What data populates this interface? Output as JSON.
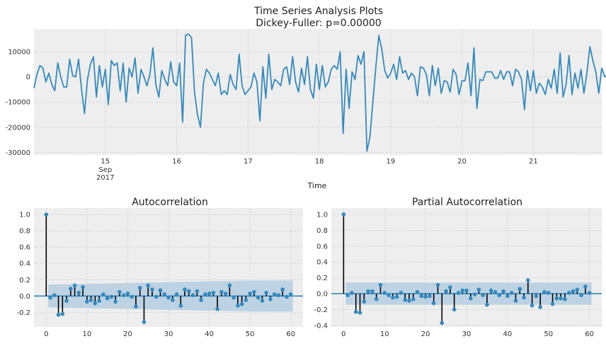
{
  "figure": {
    "title_line1": "Time Series Analysis Plots",
    "title_line2": "Dickey-Fuller: p=0.00000"
  },
  "colors": {
    "line": "#348abd",
    "panel_bg": "#eeeeee",
    "grid": "#c8c8c8",
    "band": "#b4cce0",
    "stem": "#000000",
    "zero_line": "#348abd"
  },
  "chart_data": [
    {
      "type": "line",
      "title": "",
      "xlabel": "Time",
      "ylabel": "",
      "ylim": [
        -31000,
        19000
      ],
      "yticks": [
        -30000,
        -20000,
        -10000,
        0,
        10000
      ],
      "x_range": [
        "2017-09-14 00:00",
        "2017-09-21 23:00"
      ],
      "x_ticks": [
        {
          "time": "2017-09-15 00:00",
          "label": "15",
          "sub": [
            "Sep",
            "2017"
          ]
        },
        {
          "time": "2017-09-16 00:00",
          "label": "16"
        },
        {
          "time": "2017-09-17 00:00",
          "label": "17"
        },
        {
          "time": "2017-09-18 00:00",
          "label": "18"
        },
        {
          "time": "2017-09-19 00:00",
          "label": "19"
        },
        {
          "time": "2017-09-20 00:00",
          "label": "20"
        },
        {
          "time": "2017-09-21 00:00",
          "label": "21"
        }
      ],
      "series": [
        {
          "interval_hours": 1,
          "values": [
            -4500,
            1000,
            4500,
            3500,
            -2000,
            1500,
            -3000,
            -5500,
            5500,
            0,
            -4000,
            -4000,
            7000,
            500,
            0,
            7000,
            -5000,
            -14500,
            -1000,
            5000,
            8000,
            -8000,
            4500,
            -4000,
            3000,
            -11000,
            6500,
            4500,
            5500,
            -5500,
            5500,
            -10000,
            3500,
            0,
            7500,
            -6500,
            3000,
            0,
            -3500,
            1000,
            11500,
            -3000,
            -8000,
            2500,
            -1000,
            -3500,
            6000,
            -2000,
            -3500,
            5500,
            -18000,
            16500,
            17000,
            15500,
            -6000,
            -15000,
            -20000,
            -2500,
            3000,
            1500,
            -1000,
            -3500,
            1500,
            -7000,
            -5500,
            -7000,
            1000,
            -3000,
            -5000,
            9000,
            -3500,
            -7000,
            -5500,
            -4000,
            1500,
            -2000,
            -17500,
            4000,
            -8500,
            9000,
            -5000,
            -1000,
            -2000,
            -3500,
            3000,
            4000,
            -3000,
            8000,
            -2000,
            -6000,
            3500,
            -3000,
            8000,
            -5000,
            -8500,
            5000,
            -5000,
            4500,
            -4000,
            -2000,
            3000,
            4500,
            3000,
            10000,
            -22500,
            3000,
            -12500,
            2000,
            -1000,
            8500,
            5000,
            10000,
            -29500,
            -24000,
            -10000,
            4000,
            16500,
            11000,
            2500,
            -500,
            1500,
            5000,
            -1000,
            8000,
            1500,
            2500,
            -1000,
            1500,
            0,
            -7500,
            4000,
            3500,
            1000,
            -7500,
            4500,
            -3500,
            3500,
            -6500,
            -1500,
            -2000,
            -6000,
            3000,
            1000,
            -7000,
            -1500,
            -1500,
            5500,
            -7500,
            11500,
            -12500,
            -1000,
            -1500,
            2000,
            2000,
            2000,
            -500,
            -500,
            2500,
            -1000,
            2000,
            2000,
            -3500,
            3000,
            2000,
            -1000,
            -13000,
            2500,
            -5500,
            2500,
            -6500,
            -2500,
            -4000,
            -7000,
            -1000,
            -4500,
            3000,
            -6500,
            9500,
            -8000,
            -3000,
            8500,
            -7000,
            1500,
            -4500,
            3000,
            -6500,
            1500,
            12000,
            6500,
            2000,
            -6500,
            3500,
            0,
            1000,
            -3000,
            3500,
            1000,
            3000,
            -4500,
            5000,
            -3500,
            -4000,
            2000,
            -2000,
            16500,
            -3000,
            2000,
            -3000,
            5000,
            -5000,
            -4000,
            -4500,
            -4000,
            -1500,
            3500,
            -14000,
            2000,
            5500,
            -2500
          ]
        }
      ],
      "grid": true
    },
    {
      "type": "bar",
      "title": "Autocorrelation",
      "xlabel": "",
      "ylabel": "",
      "xlim": [
        -3,
        63
      ],
      "ylim": [
        -0.38,
        1.08
      ],
      "xticks": [
        0,
        10,
        20,
        30,
        40,
        50,
        60
      ],
      "yticks": [
        -0.2,
        0.0,
        0.2,
        0.4,
        0.6,
        0.8,
        1.0
      ],
      "lags": [
        0,
        1,
        2,
        3,
        4,
        5,
        6,
        7,
        8,
        9,
        10,
        11,
        12,
        13,
        14,
        15,
        16,
        17,
        18,
        19,
        20,
        21,
        22,
        23,
        24,
        25,
        26,
        27,
        28,
        29,
        30,
        31,
        32,
        33,
        34,
        35,
        36,
        37,
        38,
        39,
        40,
        41,
        42,
        43,
        44,
        45,
        46,
        47,
        48,
        49,
        50,
        51,
        52,
        53,
        54,
        55,
        56,
        57,
        58,
        59,
        60
      ],
      "values": [
        1.0,
        -0.02,
        0.01,
        -0.23,
        -0.22,
        -0.06,
        0.09,
        0.13,
        0.04,
        0.11,
        -0.07,
        -0.05,
        -0.09,
        -0.06,
        0.02,
        -0.03,
        -0.01,
        -0.07,
        0.05,
        0.01,
        0.03,
        -0.01,
        -0.13,
        0.1,
        -0.32,
        0.13,
        0.08,
        -0.01,
        0.07,
        0.02,
        -0.02,
        -0.05,
        0.02,
        -0.12,
        0.08,
        0.06,
        0.01,
        0.06,
        -0.05,
        0.02,
        0.03,
        0.04,
        -0.16,
        0.05,
        0.03,
        0.13,
        -0.02,
        -0.12,
        -0.1,
        -0.05,
        0.03,
        0.05,
        -0.02,
        -0.06,
        0.04,
        -0.04,
        0.02,
        0.01,
        0.08,
        -0.01,
        0.02
      ],
      "conf_band": {
        "lags": [
          1,
          10,
          20,
          30,
          40,
          50,
          60
        ],
        "upper": [
          0.14,
          0.15,
          0.16,
          0.17,
          0.18,
          0.19,
          0.19
        ]
      },
      "grid": true
    },
    {
      "type": "bar",
      "title": "Partial Autocorrelation",
      "xlabel": "",
      "ylabel": "",
      "xlim": [
        -3,
        63
      ],
      "ylim": [
        -0.42,
        1.08
      ],
      "xticks": [
        0,
        10,
        20,
        30,
        40,
        50,
        60
      ],
      "yticks": [
        -0.4,
        -0.2,
        0.0,
        0.2,
        0.4,
        0.6,
        0.8,
        1.0
      ],
      "lags": [
        0,
        1,
        2,
        3,
        4,
        5,
        6,
        7,
        8,
        9,
        10,
        11,
        12,
        13,
        14,
        15,
        16,
        17,
        18,
        19,
        20,
        21,
        22,
        23,
        24,
        25,
        26,
        27,
        28,
        29,
        30,
        31,
        32,
        33,
        34,
        35,
        36,
        37,
        38,
        39,
        40,
        41,
        42,
        43,
        44,
        45,
        46,
        47,
        48,
        49,
        50,
        51,
        52,
        53,
        54,
        55,
        56,
        57,
        58,
        59,
        60
      ],
      "values": [
        1.0,
        -0.02,
        0.01,
        -0.23,
        -0.24,
        -0.1,
        0.03,
        0.03,
        -0.07,
        0.11,
        0.01,
        -0.02,
        -0.05,
        -0.04,
        0.01,
        -0.08,
        -0.09,
        -0.07,
        0.02,
        -0.03,
        -0.04,
        -0.03,
        -0.12,
        0.11,
        -0.37,
        0.03,
        0.08,
        -0.2,
        0.01,
        0.04,
        0.04,
        -0.06,
        -0.01,
        0.05,
        -0.02,
        -0.14,
        0.04,
        0.02,
        -0.02,
        0.03,
        -0.03,
        0.01,
        -0.09,
        0.06,
        -0.05,
        0.17,
        -0.15,
        -0.03,
        -0.17,
        0.02,
        0.01,
        -0.13,
        -0.06,
        -0.06,
        -0.07,
        0.01,
        0.03,
        0.05,
        -0.02,
        0.09,
        0.01
      ],
      "conf_band": {
        "lags": [
          1,
          10,
          20,
          30,
          40,
          50,
          60
        ],
        "upper": [
          0.14,
          0.14,
          0.14,
          0.14,
          0.14,
          0.14,
          0.14
        ]
      },
      "grid": true
    }
  ]
}
